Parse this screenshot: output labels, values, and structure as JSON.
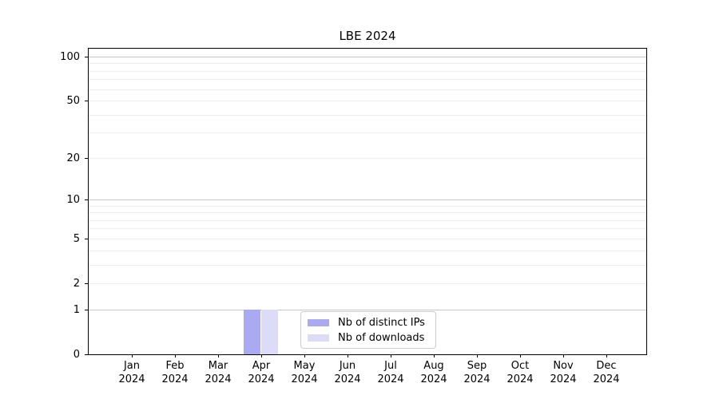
{
  "chart_data": {
    "type": "bar",
    "title": "LBE 2024",
    "categories": [
      "Jan",
      "Feb",
      "Mar",
      "Apr",
      "May",
      "Jun",
      "Jul",
      "Aug",
      "Sep",
      "Oct",
      "Nov",
      "Dec"
    ],
    "category_year": "2024",
    "series": [
      {
        "name": "Nb of distinct IPs",
        "color": "#aaaaf2",
        "values": [
          0,
          0,
          0,
          1,
          0,
          0,
          0,
          0,
          0,
          0,
          0,
          0
        ]
      },
      {
        "name": "Nb of downloads",
        "color": "#dcdcf8",
        "values": [
          0,
          0,
          0,
          1,
          0,
          0,
          0,
          0,
          0,
          0,
          0,
          0
        ]
      }
    ],
    "xlabel": "",
    "ylabel": "",
    "y_axis": {
      "scale": "log1p",
      "tick_values": [
        0,
        1,
        2,
        5,
        10,
        20,
        50,
        100
      ],
      "tick_labels": [
        "0",
        "1",
        "2",
        "5",
        "10",
        "20",
        "50",
        "100"
      ],
      "major_gridlines": [
        1,
        10,
        100
      ],
      "minor_gridlines": [
        2,
        3,
        4,
        5,
        6,
        7,
        8,
        9,
        20,
        30,
        40,
        50,
        60,
        70,
        80,
        90
      ],
      "ylim": [
        0,
        114
      ]
    },
    "legend": {
      "position": "inside-bottom-center"
    },
    "grid": true
  },
  "colors": {
    "major_grid": "#c6c6c6",
    "minor_grid": "#ededed",
    "spine": "#000000",
    "text": "#000000",
    "legend_border": "#cccccc"
  }
}
